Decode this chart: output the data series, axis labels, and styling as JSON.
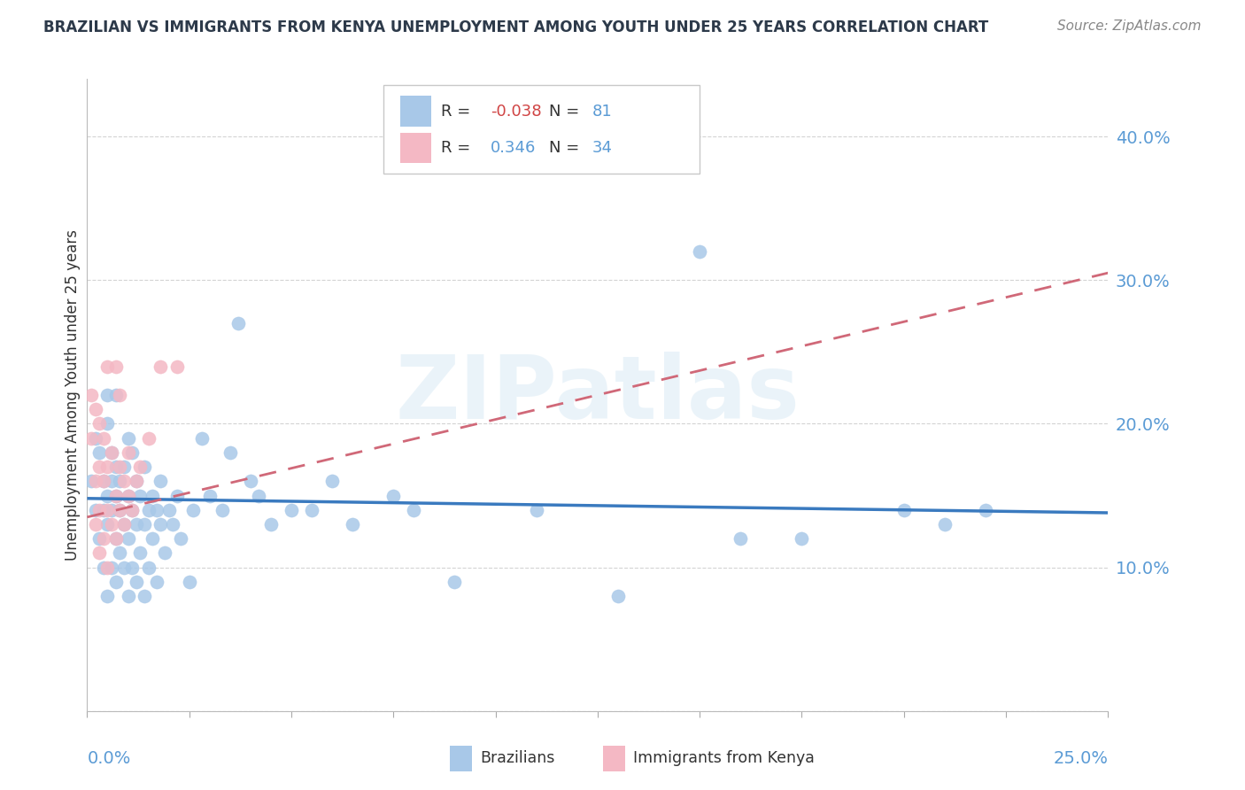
{
  "title": "BRAZILIAN VS IMMIGRANTS FROM KENYA UNEMPLOYMENT AMONG YOUTH UNDER 25 YEARS CORRELATION CHART",
  "source": "Source: ZipAtlas.com",
  "ylabel": "Unemployment Among Youth under 25 years",
  "xlim": [
    0.0,
    0.25
  ],
  "ylim": [
    0.0,
    0.44
  ],
  "watermark": "ZIPatlas",
  "blue_r": "-0.038",
  "blue_n": "81",
  "pink_r": "0.346",
  "pink_n": "34",
  "blue_scatter_color": "#a8c8e8",
  "pink_scatter_color": "#f4b8c4",
  "blue_line_color": "#3a7abf",
  "pink_line_color": "#d06878",
  "label_color": "#5b9bd5",
  "title_color": "#2d3a4a",
  "text_color": "#333333",
  "grid_color": "#d0d0d0",
  "ytick_vals": [
    0.0,
    0.1,
    0.2,
    0.3,
    0.4
  ],
  "ytick_labels": [
    "",
    "10.0%",
    "20.0%",
    "30.0%",
    "40.0%"
  ],
  "xtick_left": "0.0%",
  "xtick_right": "25.0%",
  "legend_label_blue": "Brazilians",
  "legend_label_pink": "Immigrants from Kenya",
  "brazilians_x": [
    0.001,
    0.002,
    0.002,
    0.003,
    0.003,
    0.004,
    0.004,
    0.004,
    0.005,
    0.005,
    0.005,
    0.005,
    0.005,
    0.006,
    0.006,
    0.006,
    0.006,
    0.007,
    0.007,
    0.007,
    0.007,
    0.007,
    0.008,
    0.008,
    0.008,
    0.009,
    0.009,
    0.009,
    0.01,
    0.01,
    0.01,
    0.01,
    0.011,
    0.011,
    0.011,
    0.012,
    0.012,
    0.012,
    0.013,
    0.013,
    0.014,
    0.014,
    0.014,
    0.015,
    0.015,
    0.016,
    0.016,
    0.017,
    0.017,
    0.018,
    0.018,
    0.019,
    0.02,
    0.021,
    0.022,
    0.023,
    0.025,
    0.026,
    0.028,
    0.03,
    0.033,
    0.035,
    0.037,
    0.04,
    0.042,
    0.045,
    0.05,
    0.055,
    0.06,
    0.065,
    0.075,
    0.08,
    0.09,
    0.11,
    0.13,
    0.15,
    0.16,
    0.175,
    0.2,
    0.21,
    0.22
  ],
  "brazilians_y": [
    0.16,
    0.14,
    0.19,
    0.12,
    0.18,
    0.1,
    0.14,
    0.16,
    0.08,
    0.13,
    0.15,
    0.2,
    0.22,
    0.1,
    0.14,
    0.16,
    0.18,
    0.09,
    0.12,
    0.15,
    0.17,
    0.22,
    0.11,
    0.14,
    0.16,
    0.1,
    0.13,
    0.17,
    0.08,
    0.12,
    0.15,
    0.19,
    0.1,
    0.14,
    0.18,
    0.09,
    0.13,
    0.16,
    0.11,
    0.15,
    0.08,
    0.13,
    0.17,
    0.1,
    0.14,
    0.12,
    0.15,
    0.09,
    0.14,
    0.13,
    0.16,
    0.11,
    0.14,
    0.13,
    0.15,
    0.12,
    0.09,
    0.14,
    0.19,
    0.15,
    0.14,
    0.18,
    0.27,
    0.16,
    0.15,
    0.13,
    0.14,
    0.14,
    0.16,
    0.13,
    0.15,
    0.14,
    0.09,
    0.14,
    0.08,
    0.32,
    0.12,
    0.12,
    0.14,
    0.13,
    0.14
  ],
  "kenya_x": [
    0.001,
    0.001,
    0.002,
    0.002,
    0.002,
    0.003,
    0.003,
    0.003,
    0.003,
    0.004,
    0.004,
    0.004,
    0.005,
    0.005,
    0.005,
    0.005,
    0.006,
    0.006,
    0.007,
    0.007,
    0.007,
    0.008,
    0.008,
    0.008,
    0.009,
    0.009,
    0.01,
    0.01,
    0.011,
    0.012,
    0.013,
    0.015,
    0.018,
    0.022
  ],
  "kenya_y": [
    0.19,
    0.22,
    0.13,
    0.16,
    0.21,
    0.11,
    0.14,
    0.17,
    0.2,
    0.12,
    0.16,
    0.19,
    0.1,
    0.14,
    0.17,
    0.24,
    0.13,
    0.18,
    0.12,
    0.15,
    0.24,
    0.14,
    0.17,
    0.22,
    0.13,
    0.16,
    0.15,
    0.18,
    0.14,
    0.16,
    0.17,
    0.19,
    0.24,
    0.24
  ],
  "pink_line_x0": 0.0,
  "pink_line_y0": 0.135,
  "pink_line_x1": 0.25,
  "pink_line_y1": 0.305,
  "blue_line_x0": 0.0,
  "blue_line_y0": 0.148,
  "blue_line_x1": 0.25,
  "blue_line_y1": 0.138
}
